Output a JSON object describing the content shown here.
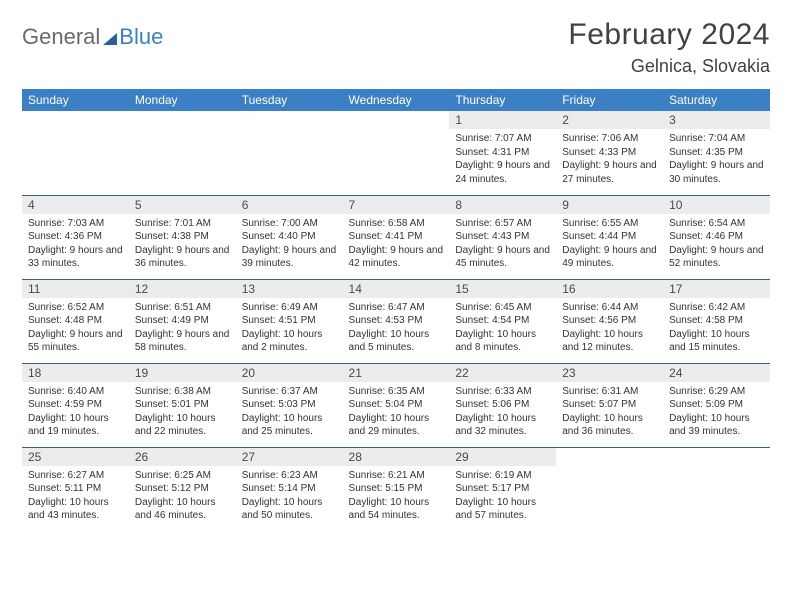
{
  "brand": {
    "part1": "General",
    "part2": "Blue"
  },
  "title": "February 2024",
  "location": "Gelnica, Slovakia",
  "colors": {
    "header_bg": "#3b7fc4",
    "header_text": "#ffffff",
    "daynum_bg": "#ececec",
    "row_divider": "#3b5f88",
    "title_color": "#414141",
    "body_text": "#333333",
    "page_bg": "#ffffff"
  },
  "day_headers": [
    "Sunday",
    "Monday",
    "Tuesday",
    "Wednesday",
    "Thursday",
    "Friday",
    "Saturday"
  ],
  "weeks": [
    [
      {
        "n": "",
        "sr": "",
        "ss": "",
        "dl": ""
      },
      {
        "n": "",
        "sr": "",
        "ss": "",
        "dl": ""
      },
      {
        "n": "",
        "sr": "",
        "ss": "",
        "dl": ""
      },
      {
        "n": "",
        "sr": "",
        "ss": "",
        "dl": ""
      },
      {
        "n": "1",
        "sr": "Sunrise: 7:07 AM",
        "ss": "Sunset: 4:31 PM",
        "dl": "Daylight: 9 hours and 24 minutes."
      },
      {
        "n": "2",
        "sr": "Sunrise: 7:06 AM",
        "ss": "Sunset: 4:33 PM",
        "dl": "Daylight: 9 hours and 27 minutes."
      },
      {
        "n": "3",
        "sr": "Sunrise: 7:04 AM",
        "ss": "Sunset: 4:35 PM",
        "dl": "Daylight: 9 hours and 30 minutes."
      }
    ],
    [
      {
        "n": "4",
        "sr": "Sunrise: 7:03 AM",
        "ss": "Sunset: 4:36 PM",
        "dl": "Daylight: 9 hours and 33 minutes."
      },
      {
        "n": "5",
        "sr": "Sunrise: 7:01 AM",
        "ss": "Sunset: 4:38 PM",
        "dl": "Daylight: 9 hours and 36 minutes."
      },
      {
        "n": "6",
        "sr": "Sunrise: 7:00 AM",
        "ss": "Sunset: 4:40 PM",
        "dl": "Daylight: 9 hours and 39 minutes."
      },
      {
        "n": "7",
        "sr": "Sunrise: 6:58 AM",
        "ss": "Sunset: 4:41 PM",
        "dl": "Daylight: 9 hours and 42 minutes."
      },
      {
        "n": "8",
        "sr": "Sunrise: 6:57 AM",
        "ss": "Sunset: 4:43 PM",
        "dl": "Daylight: 9 hours and 45 minutes."
      },
      {
        "n": "9",
        "sr": "Sunrise: 6:55 AM",
        "ss": "Sunset: 4:44 PM",
        "dl": "Daylight: 9 hours and 49 minutes."
      },
      {
        "n": "10",
        "sr": "Sunrise: 6:54 AM",
        "ss": "Sunset: 4:46 PM",
        "dl": "Daylight: 9 hours and 52 minutes."
      }
    ],
    [
      {
        "n": "11",
        "sr": "Sunrise: 6:52 AM",
        "ss": "Sunset: 4:48 PM",
        "dl": "Daylight: 9 hours and 55 minutes."
      },
      {
        "n": "12",
        "sr": "Sunrise: 6:51 AM",
        "ss": "Sunset: 4:49 PM",
        "dl": "Daylight: 9 hours and 58 minutes."
      },
      {
        "n": "13",
        "sr": "Sunrise: 6:49 AM",
        "ss": "Sunset: 4:51 PM",
        "dl": "Daylight: 10 hours and 2 minutes."
      },
      {
        "n": "14",
        "sr": "Sunrise: 6:47 AM",
        "ss": "Sunset: 4:53 PM",
        "dl": "Daylight: 10 hours and 5 minutes."
      },
      {
        "n": "15",
        "sr": "Sunrise: 6:45 AM",
        "ss": "Sunset: 4:54 PM",
        "dl": "Daylight: 10 hours and 8 minutes."
      },
      {
        "n": "16",
        "sr": "Sunrise: 6:44 AM",
        "ss": "Sunset: 4:56 PM",
        "dl": "Daylight: 10 hours and 12 minutes."
      },
      {
        "n": "17",
        "sr": "Sunrise: 6:42 AM",
        "ss": "Sunset: 4:58 PM",
        "dl": "Daylight: 10 hours and 15 minutes."
      }
    ],
    [
      {
        "n": "18",
        "sr": "Sunrise: 6:40 AM",
        "ss": "Sunset: 4:59 PM",
        "dl": "Daylight: 10 hours and 19 minutes."
      },
      {
        "n": "19",
        "sr": "Sunrise: 6:38 AM",
        "ss": "Sunset: 5:01 PM",
        "dl": "Daylight: 10 hours and 22 minutes."
      },
      {
        "n": "20",
        "sr": "Sunrise: 6:37 AM",
        "ss": "Sunset: 5:03 PM",
        "dl": "Daylight: 10 hours and 25 minutes."
      },
      {
        "n": "21",
        "sr": "Sunrise: 6:35 AM",
        "ss": "Sunset: 5:04 PM",
        "dl": "Daylight: 10 hours and 29 minutes."
      },
      {
        "n": "22",
        "sr": "Sunrise: 6:33 AM",
        "ss": "Sunset: 5:06 PM",
        "dl": "Daylight: 10 hours and 32 minutes."
      },
      {
        "n": "23",
        "sr": "Sunrise: 6:31 AM",
        "ss": "Sunset: 5:07 PM",
        "dl": "Daylight: 10 hours and 36 minutes."
      },
      {
        "n": "24",
        "sr": "Sunrise: 6:29 AM",
        "ss": "Sunset: 5:09 PM",
        "dl": "Daylight: 10 hours and 39 minutes."
      }
    ],
    [
      {
        "n": "25",
        "sr": "Sunrise: 6:27 AM",
        "ss": "Sunset: 5:11 PM",
        "dl": "Daylight: 10 hours and 43 minutes."
      },
      {
        "n": "26",
        "sr": "Sunrise: 6:25 AM",
        "ss": "Sunset: 5:12 PM",
        "dl": "Daylight: 10 hours and 46 minutes."
      },
      {
        "n": "27",
        "sr": "Sunrise: 6:23 AM",
        "ss": "Sunset: 5:14 PM",
        "dl": "Daylight: 10 hours and 50 minutes."
      },
      {
        "n": "28",
        "sr": "Sunrise: 6:21 AM",
        "ss": "Sunset: 5:15 PM",
        "dl": "Daylight: 10 hours and 54 minutes."
      },
      {
        "n": "29",
        "sr": "Sunrise: 6:19 AM",
        "ss": "Sunset: 5:17 PM",
        "dl": "Daylight: 10 hours and 57 minutes."
      },
      {
        "n": "",
        "sr": "",
        "ss": "",
        "dl": ""
      },
      {
        "n": "",
        "sr": "",
        "ss": "",
        "dl": ""
      }
    ]
  ]
}
